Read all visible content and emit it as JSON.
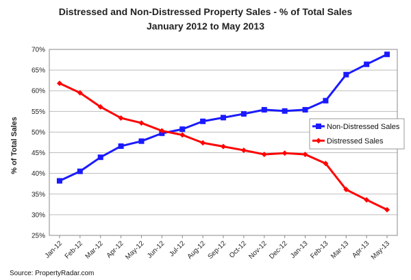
{
  "chart_data": {
    "type": "line",
    "title_line1": "Distressed and Non-Distressed Property Sales - % of Total Sales",
    "title_line2": "January 2012 to May 2013",
    "xlabel": "",
    "ylabel": "% of Total Sales",
    "ylim": [
      25,
      70
    ],
    "yticks": [
      "25%",
      "30%",
      "35%",
      "40%",
      "45%",
      "50%",
      "55%",
      "60%",
      "65%",
      "70%"
    ],
    "categories": [
      "Jan-12",
      "Feb-12",
      "Mar-12",
      "Apr-12",
      "May-12",
      "Jun-12",
      "Jul-12",
      "Aug-12",
      "Sep-12",
      "Oct-12",
      "Nov-12",
      "Dec-12",
      "Jan-13",
      "Feb-13",
      "Mar-13",
      "Apr-13",
      "May-13"
    ],
    "series": [
      {
        "name": "Non-Distressed Sales",
        "color": "#1a1aff",
        "marker": "square",
        "values": [
          38.2,
          40.5,
          43.9,
          46.6,
          47.8,
          49.7,
          50.7,
          52.6,
          53.5,
          54.4,
          55.4,
          55.1,
          55.4,
          57.6,
          63.9,
          66.4,
          68.8
        ]
      },
      {
        "name": "Distressed Sales",
        "color": "#ff0000",
        "marker": "diamond",
        "values": [
          61.8,
          59.5,
          56.1,
          53.4,
          52.2,
          50.3,
          49.3,
          47.4,
          46.5,
          45.6,
          44.6,
          44.9,
          44.6,
          42.4,
          36.1,
          33.6,
          31.2
        ]
      }
    ],
    "grid": true,
    "legend_position": "right-middle",
    "source": "Source: PropertyRadar.com"
  }
}
